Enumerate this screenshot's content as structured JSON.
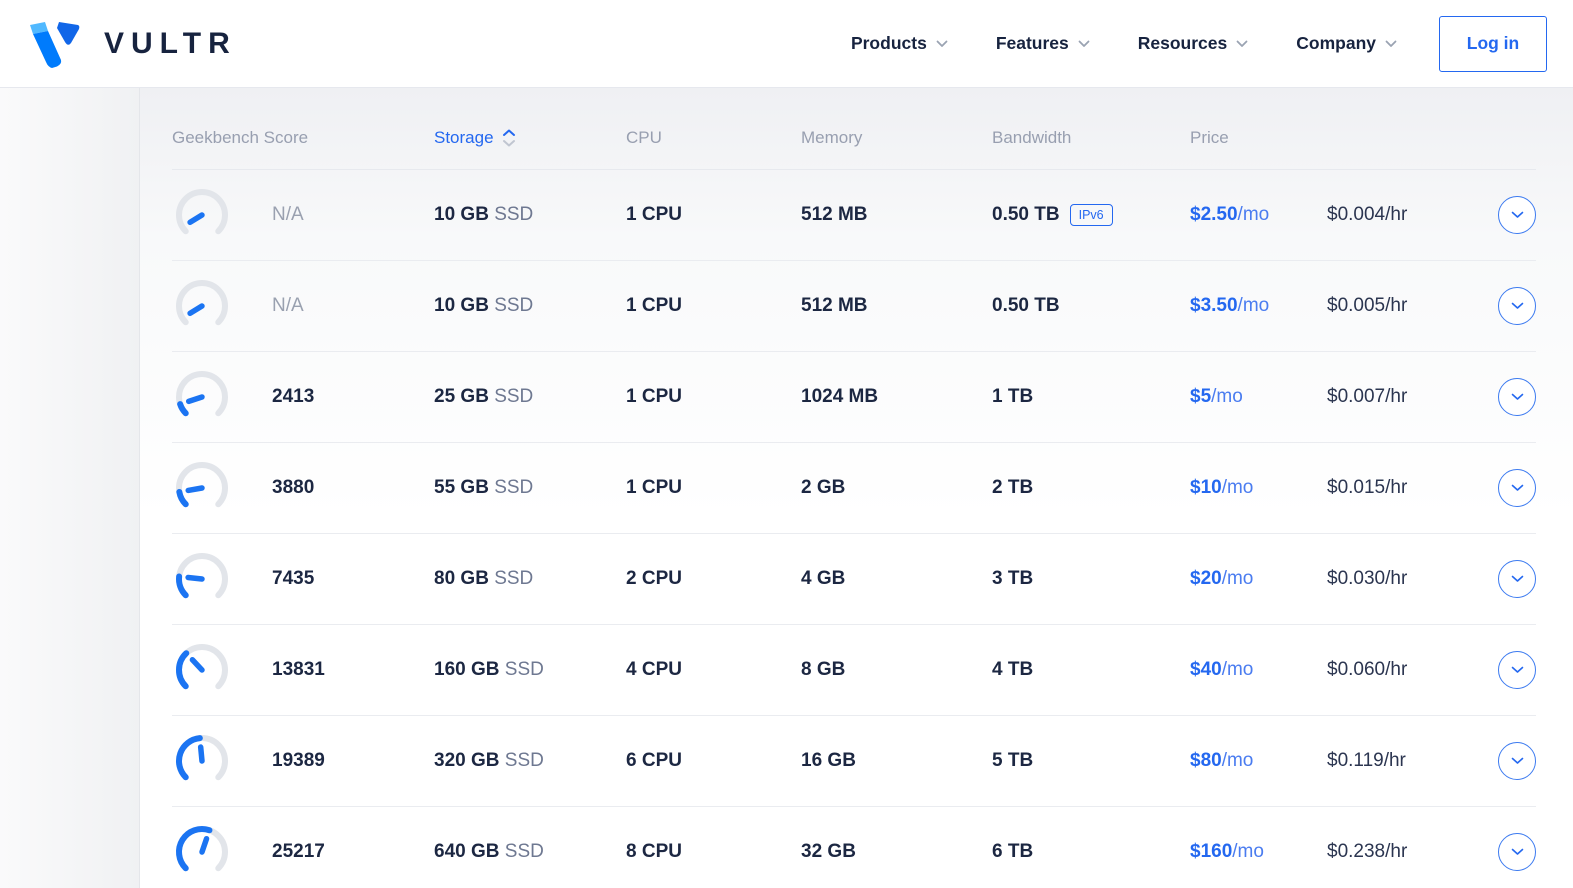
{
  "brand": {
    "name": "VULTR"
  },
  "nav": {
    "items": [
      {
        "label": "Products"
      },
      {
        "label": "Features"
      },
      {
        "label": "Resources"
      },
      {
        "label": "Company"
      }
    ],
    "login_label": "Log in"
  },
  "table": {
    "columns": {
      "geekbench": "Geekbench Score",
      "storage": "Storage",
      "cpu": "CPU",
      "memory": "Memory",
      "bandwidth": "Bandwidth",
      "price": "Price"
    },
    "sorted_column": "Storage",
    "ipv6_label": "IPv6",
    "rows": [
      {
        "score": "N/A",
        "na": true,
        "gauge": 0.05,
        "storage": "10 GB",
        "storage_suffix": "SSD",
        "cpu": "1 CPU",
        "memory": "512 MB",
        "bandwidth": "0.50 TB",
        "ipv6": true,
        "price_month": "$2.50",
        "price_month_suffix": "/mo",
        "price_hour": "$0.004/hr"
      },
      {
        "score": "N/A",
        "na": true,
        "gauge": 0.05,
        "storage": "10 GB",
        "storage_suffix": "SSD",
        "cpu": "1 CPU",
        "memory": "512 MB",
        "bandwidth": "0.50 TB",
        "ipv6": false,
        "price_month": "$3.50",
        "price_month_suffix": "/mo",
        "price_hour": "$0.005/hr"
      },
      {
        "score": "2413",
        "na": false,
        "gauge": 0.1,
        "storage": "25 GB",
        "storage_suffix": "SSD",
        "cpu": "1 CPU",
        "memory": "1024 MB",
        "bandwidth": "1 TB",
        "ipv6": false,
        "price_month": "$5",
        "price_month_suffix": "/mo",
        "price_hour": "$0.007/hr"
      },
      {
        "score": "3880",
        "na": false,
        "gauge": 0.13,
        "storage": "55 GB",
        "storage_suffix": "SSD",
        "cpu": "1 CPU",
        "memory": "2 GB",
        "bandwidth": "2 TB",
        "ipv6": false,
        "price_month": "$10",
        "price_month_suffix": "/mo",
        "price_hour": "$0.015/hr"
      },
      {
        "score": "7435",
        "na": false,
        "gauge": 0.19,
        "storage": "80 GB",
        "storage_suffix": "SSD",
        "cpu": "2 CPU",
        "memory": "4 GB",
        "bandwidth": "3 TB",
        "ipv6": false,
        "price_month": "$20",
        "price_month_suffix": "/mo",
        "price_hour": "$0.030/hr"
      },
      {
        "score": "13831",
        "na": false,
        "gauge": 0.34,
        "storage": "160 GB",
        "storage_suffix": "SSD",
        "cpu": "4 CPU",
        "memory": "8 GB",
        "bandwidth": "4 TB",
        "ipv6": false,
        "price_month": "$40",
        "price_month_suffix": "/mo",
        "price_hour": "$0.060/hr"
      },
      {
        "score": "19389",
        "na": false,
        "gauge": 0.48,
        "storage": "320 GB",
        "storage_suffix": "SSD",
        "cpu": "6 CPU",
        "memory": "16 GB",
        "bandwidth": "5 TB",
        "ipv6": false,
        "price_month": "$80",
        "price_month_suffix": "/mo",
        "price_hour": "$0.119/hr"
      },
      {
        "score": "25217",
        "na": false,
        "gauge": 0.57,
        "storage": "640 GB",
        "storage_suffix": "SSD",
        "cpu": "8 CPU",
        "memory": "32 GB",
        "bandwidth": "6 TB",
        "ipv6": false,
        "price_month": "$160",
        "price_month_suffix": "/mo",
        "price_hour": "$0.238/hr"
      }
    ]
  },
  "colors": {
    "accent": "#2468f0",
    "gauge_blue": "#1b74f2",
    "gauge_track": "#e2e5ea",
    "navy": "#1c2742",
    "logo_blue": "#007bfc",
    "logo_light_blue": "#51b9ff",
    "logo_mid_blue": "#1166e8"
  }
}
